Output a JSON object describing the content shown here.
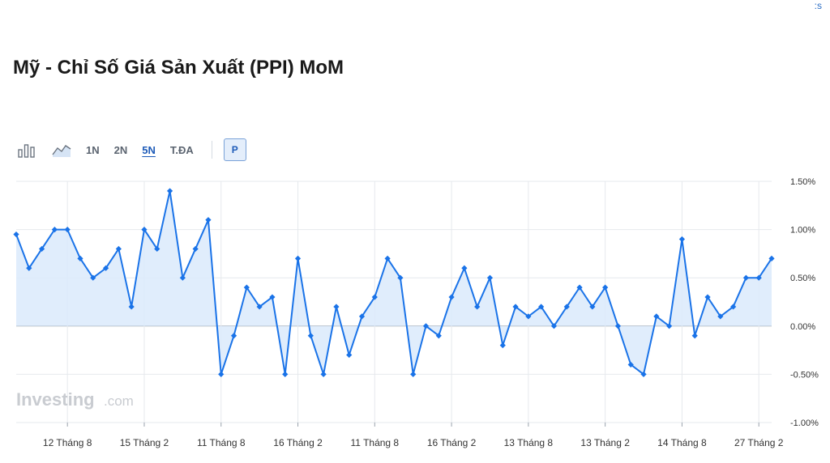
{
  "corner_text": ":s",
  "title": "Mỹ - Chỉ Số Giá Sản Xuất (PPI) MoM",
  "toolbar": {
    "bar_icon": "bar-chart-icon",
    "area_icon": "area-chart-icon",
    "ranges": [
      "1N",
      "2N",
      "5N",
      "T.ĐA"
    ],
    "active_range": "5N",
    "p_label": "P"
  },
  "watermark": {
    "brand": "Investing",
    "suffix": ".com"
  },
  "colors": {
    "line": "#1a73e8",
    "fill": "#dbeafb",
    "accent": "#1e5bb8"
  },
  "chart_data": {
    "type": "area",
    "title": "Mỹ - Chỉ Số Giá Sản Xuất (PPI) MoM",
    "ylim": [
      -1.0,
      1.5
    ],
    "yticks": [
      "1.50%",
      "1.00%",
      "0.50%",
      "0.00%",
      "-0.50%",
      "-1.00%"
    ],
    "ytick_values": [
      1.5,
      1.0,
      0.5,
      0.0,
      -0.5,
      -1.0
    ],
    "xtick_labels": [
      "12 Tháng 8",
      "15 Tháng 2",
      "11 Tháng 8",
      "16 Tháng 2",
      "11 Tháng 8",
      "16 Tháng 2",
      "13 Tháng 8",
      "13 Tháng 2",
      "14 Tháng 8",
      "27 Tháng 2"
    ],
    "xtick_indices": [
      4,
      10,
      16,
      22,
      28,
      34,
      40,
      46,
      52,
      58
    ],
    "grid": true,
    "values": [
      0.95,
      0.6,
      0.8,
      1.0,
      1.0,
      0.7,
      0.5,
      0.6,
      0.8,
      0.2,
      1.0,
      0.8,
      1.4,
      0.5,
      0.8,
      1.1,
      -0.5,
      -0.1,
      0.4,
      0.2,
      0.3,
      -0.5,
      0.7,
      -0.1,
      -0.5,
      0.2,
      -0.3,
      0.1,
      0.3,
      0.7,
      0.5,
      -0.5,
      0.0,
      -0.1,
      0.3,
      0.6,
      0.2,
      0.5,
      -0.2,
      0.2,
      0.1,
      0.2,
      0.0,
      0.2,
      0.4,
      0.2,
      0.4,
      0.0,
      -0.4,
      -0.5,
      0.1,
      0.0,
      0.9,
      -0.1,
      0.3,
      0.1,
      0.2,
      0.5,
      0.5,
      0.7
    ]
  }
}
